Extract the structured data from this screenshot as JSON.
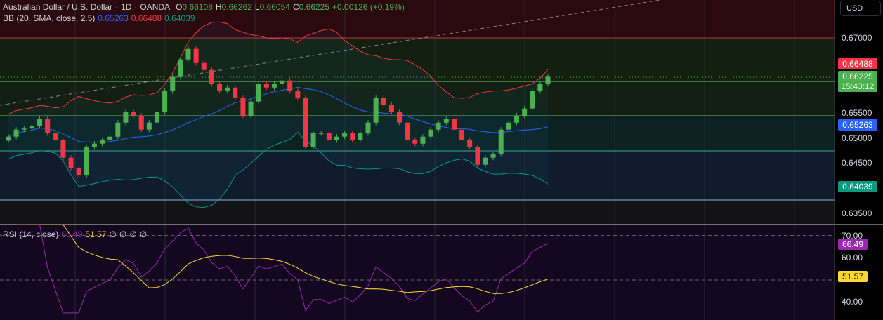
{
  "header": {
    "symbol": "Australian Dollar / U.S. Dollar",
    "interval": "1D",
    "exchange": "OANDA",
    "o_label": "O",
    "o": "0.66108",
    "h_label": "H",
    "h": "0.66262",
    "l_label": "L",
    "l": "0.66054",
    "c_label": "C",
    "c": "0.66225",
    "change": "+0.00126 (+0.19%)"
  },
  "bb": {
    "label": "BB (20, SMA, close, 2.5)",
    "basis": "0.65263",
    "upper": "0.66488",
    "lower": "0.64039"
  },
  "rsi": {
    "label": "RSI (14, close)",
    "value": "66.49",
    "ma": "51.57",
    "empties": [
      "∅",
      "∅",
      "∅",
      "∅"
    ]
  },
  "axis": {
    "currency": "USD",
    "price_ticks": [
      "0.67000",
      "0.65500",
      "0.65000",
      "0.64500",
      "0.63500"
    ],
    "rsi_ticks": [
      "70.00",
      "60.00",
      "40.00"
    ],
    "tags": {
      "upper": "0.66488",
      "last": "0.66225",
      "countdown": "15:43:12",
      "basis": "0.65263",
      "lower": "0.64039",
      "rsi": "66.49",
      "rsi_ma": "51.57"
    }
  },
  "colors": {
    "up": "#4caf50",
    "down": "#f23645",
    "basis": "#2962ff",
    "upper": "#f23645",
    "lower": "#089981",
    "rsi": "#9c27b0",
    "rsi_ma": "#fdd835"
  },
  "chart_data": {
    "type": "candlestick",
    "ylim": [
      0.632,
      0.6776
    ],
    "closes": [
      0.6503,
      0.6517,
      0.6519,
      0.6524,
      0.6538,
      0.651,
      0.6496,
      0.6461,
      0.644,
      0.6426,
      0.6482,
      0.6489,
      0.6496,
      0.6503,
      0.6531,
      0.6552,
      0.6545,
      0.6517,
      0.6531,
      0.6552,
      0.6594,
      0.6622,
      0.6657,
      0.6678,
      0.665,
      0.6636,
      0.6608,
      0.6594,
      0.6601,
      0.658,
      0.6545,
      0.6573,
      0.6608,
      0.6601,
      0.6608,
      0.6615,
      0.6594,
      0.658,
      0.6482,
      0.651,
      0.651,
      0.6496,
      0.6503,
      0.651,
      0.6496,
      0.651,
      0.6531,
      0.658,
      0.6566,
      0.6552,
      0.6531,
      0.6496,
      0.6489,
      0.6503,
      0.6517,
      0.6531,
      0.6538,
      0.6517,
      0.6496,
      0.6482,
      0.6447,
      0.6461,
      0.6468,
      0.6517,
      0.6531,
      0.6545,
      0.6559,
      0.6594,
      0.6608,
      0.66225
    ]
  }
}
